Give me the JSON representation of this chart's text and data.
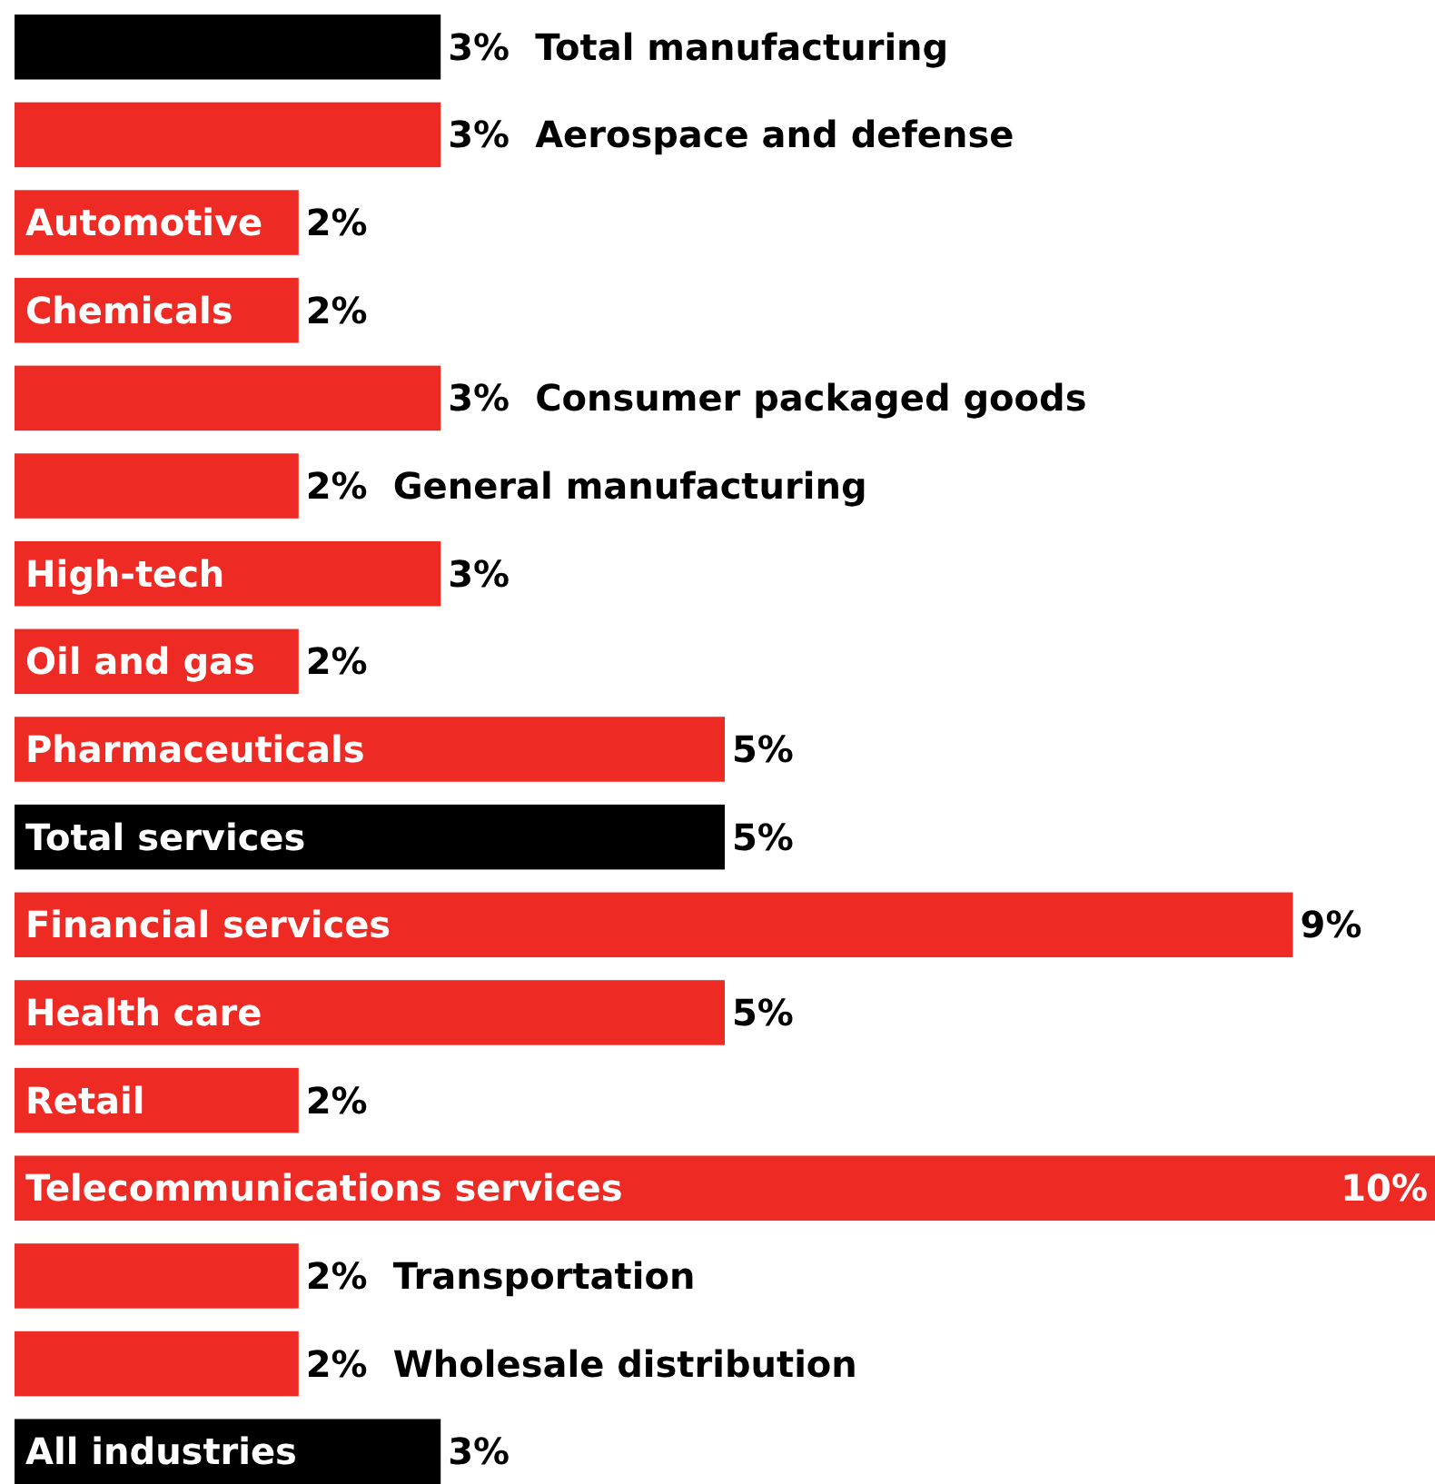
{
  "chart_data": {
    "type": "bar",
    "orientation": "horizontal",
    "categories": [
      "Total manufacturing",
      "Aerospace and defense",
      "Automotive",
      "Chemicals",
      "Consumer packaged goods",
      "General manufacturing",
      "High-tech",
      "Oil and gas",
      "Pharmaceuticals",
      "Total services",
      "Financial services",
      "Health care",
      "Retail",
      "Telecommunications services",
      "Transportation",
      "Wholesale distribution",
      "All industries"
    ],
    "values": [
      3,
      3,
      2,
      2,
      3,
      2,
      3,
      2,
      5,
      5,
      9,
      5,
      2,
      10,
      2,
      2,
      3
    ],
    "value_labels": [
      "3%",
      "3%",
      "2%",
      "2%",
      "3%",
      "2%",
      "3%",
      "2%",
      "5%",
      "5%",
      "9%",
      "5%",
      "2%",
      "10%",
      "2%",
      "2%",
      "3%"
    ],
    "colors": [
      "#000000",
      "#ee2a24",
      "#ee2a24",
      "#ee2a24",
      "#ee2a24",
      "#ee2a24",
      "#ee2a24",
      "#ee2a24",
      "#ee2a24",
      "#000000",
      "#ee2a24",
      "#ee2a24",
      "#ee2a24",
      "#ee2a24",
      "#ee2a24",
      "#ee2a24",
      "#000000"
    ],
    "grid": false
  }
}
